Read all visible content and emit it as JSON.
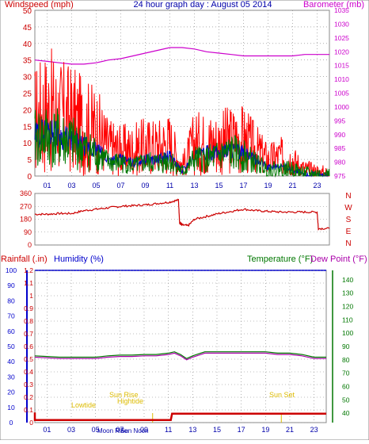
{
  "title": "24 hour graph day : August 05 2014",
  "colors": {
    "wind": "#ff0000",
    "gust_bg": "#ff0000",
    "wind_avg": "#0000cc",
    "wind_green": "#007700",
    "baro": "#cc00cc",
    "temp": "#007700",
    "dew": "#aa00aa",
    "rain": "#cc0000",
    "humidity_axis": "#0000cc",
    "dir": "#cc0000",
    "solar": "#ddbb00",
    "grid": "#808080"
  },
  "chart_data": [
    {
      "type": "line",
      "title": "24 hour graph day : August 05 2014",
      "ylabel_left": "Windspeed (mph)",
      "ylabel_right": "Barometer (mb)",
      "x_ticks": [
        "01",
        "03",
        "05",
        "07",
        "09",
        "11",
        "13",
        "15",
        "17",
        "19",
        "21",
        "23"
      ],
      "x_range": [
        0,
        24
      ],
      "y_left_ticks": [
        0,
        5,
        10,
        15,
        20,
        25,
        30,
        35,
        40,
        45,
        50
      ],
      "y_left_range": [
        0,
        50
      ],
      "y_right_ticks": [
        975,
        980,
        985,
        990,
        995,
        1000,
        1005,
        1010,
        1015,
        1020,
        1025,
        1030,
        1035
      ],
      "y_right_range": [
        975,
        1035
      ],
      "series": [
        {
          "name": "Barometer",
          "axis": "right",
          "x": [
            0,
            1,
            2,
            3,
            4,
            5,
            6,
            7,
            8,
            9,
            10,
            11,
            12,
            13,
            14,
            15,
            16,
            17,
            18,
            19,
            20,
            21,
            22,
            23,
            24
          ],
          "y": [
            1017,
            1016.5,
            1016,
            1015.5,
            1015.5,
            1016,
            1017,
            1017.5,
            1018.5,
            1019.5,
            1020.5,
            1021.5,
            1021.5,
            1021,
            1020,
            1019.5,
            1019,
            1018.5,
            1018.5,
            1018.5,
            1018.5,
            1018.5,
            1019,
            1019,
            1019
          ]
        },
        {
          "name": "Gust",
          "axis": "left",
          "x": [
            0,
            1,
            2,
            3,
            4,
            5,
            6,
            7,
            8,
            9,
            10,
            11,
            12,
            13,
            14,
            15,
            16,
            17,
            18,
            19,
            20,
            21,
            22,
            23,
            24
          ],
          "y": [
            17,
            20,
            18,
            17,
            15,
            14,
            9,
            8,
            8,
            9,
            9,
            10,
            3,
            10,
            10,
            10,
            11,
            11,
            8,
            5,
            6,
            5,
            2,
            1,
            0
          ]
        },
        {
          "name": "Wind",
          "axis": "left",
          "x": [
            0,
            1,
            2,
            3,
            4,
            5,
            6,
            7,
            8,
            9,
            10,
            11,
            12,
            13,
            14,
            15,
            16,
            17,
            18,
            19,
            20,
            21,
            22,
            23,
            24
          ],
          "y": [
            11,
            12,
            11,
            10,
            8,
            7,
            4,
            4,
            3,
            4,
            4,
            5,
            1,
            5,
            5,
            6,
            7,
            6,
            4,
            2,
            2,
            2,
            0.5,
            0.3,
            0
          ]
        },
        {
          "name": "Average",
          "axis": "left",
          "x": [
            0,
            1,
            2,
            3,
            4,
            5,
            6,
            7,
            8,
            9,
            10,
            11,
            12,
            13,
            14,
            15,
            16,
            17,
            18,
            19,
            20,
            21,
            22,
            23,
            24
          ],
          "y": [
            12,
            14,
            12,
            11,
            9,
            8,
            5,
            5,
            4,
            5,
            5,
            6,
            1.5,
            6,
            7,
            7,
            8,
            7,
            5,
            2.5,
            3,
            2,
            0.5,
            0.3,
            0
          ]
        }
      ]
    },
    {
      "type": "line",
      "ylabel_right": [
        "N",
        "W",
        "S",
        "E",
        "N"
      ],
      "x_range": [
        0,
        24
      ],
      "y_ticks": [
        0,
        90,
        180,
        270,
        360
      ],
      "y_range": [
        0,
        360
      ],
      "series": [
        {
          "name": "Wind Direction",
          "x": [
            0,
            1,
            2,
            3,
            4,
            5,
            6,
            7,
            8,
            9,
            10,
            11,
            11.7,
            11.8,
            12,
            12.5,
            13,
            14,
            15,
            16,
            17,
            18,
            19,
            20,
            21,
            22,
            23,
            23.1,
            24
          ],
          "y": [
            215,
            215,
            220,
            220,
            240,
            250,
            260,
            270,
            275,
            280,
            290,
            300,
            315,
            150,
            140,
            135,
            180,
            200,
            220,
            235,
            250,
            240,
            235,
            230,
            230,
            230,
            230,
            115,
            115
          ]
        }
      ]
    },
    {
      "type": "line",
      "ylabel_left": "Rainfall (.in)",
      "ylabel_left2": "Humidity (%)",
      "ylabel_right": "Temperature (°F)",
      "ylabel_right2": "Dew Point (°F)",
      "x_range": [
        0,
        24
      ],
      "rain_ticks": [
        0,
        0.1,
        0.2,
        0.3,
        0.4,
        0.5,
        0.6,
        0.7,
        0.8,
        0.9,
        1,
        1.1,
        1.2
      ],
      "rain_range": [
        0,
        1.2
      ],
      "humidity_ticks": [
        0,
        10,
        20,
        30,
        40,
        50,
        60,
        70,
        80,
        90,
        100
      ],
      "humidity_range": [
        0,
        100
      ],
      "temp_ticks": [
        40,
        50,
        60,
        70,
        80,
        90,
        100,
        110,
        120,
        130,
        140
      ],
      "temp_range": [
        33,
        147
      ],
      "annotations": [
        "Sun Rise",
        "Sun Set",
        "Moon Rise",
        "Lowtide",
        "Hightide",
        "Sun Noon"
      ],
      "series": [
        {
          "name": "Temperature",
          "axis": "temp",
          "x": [
            0,
            1,
            2,
            3,
            4,
            5,
            6,
            7,
            8,
            9,
            10,
            11,
            11.5,
            12,
            12.5,
            13,
            14,
            15,
            16,
            17,
            18,
            19,
            20,
            21,
            22,
            23,
            24
          ],
          "y": [
            83,
            82.5,
            82,
            82,
            82,
            82,
            83,
            83.5,
            83.5,
            84,
            84,
            85,
            86,
            84,
            81,
            83,
            86,
            86,
            86,
            86,
            86,
            86,
            85,
            85,
            84,
            82,
            82
          ]
        },
        {
          "name": "Dew Point",
          "axis": "temp",
          "x": [
            0,
            1,
            2,
            3,
            4,
            5,
            6,
            7,
            8,
            9,
            10,
            11,
            11.5,
            12,
            12.5,
            13,
            14,
            15,
            16,
            17,
            18,
            19,
            20,
            21,
            22,
            23,
            24
          ],
          "y": [
            82,
            81.5,
            81,
            81,
            81,
            81,
            82,
            82.5,
            82.5,
            83,
            83,
            84,
            85,
            83,
            80,
            82,
            85,
            85,
            85,
            85,
            85,
            85,
            84,
            84,
            83,
            81,
            81
          ]
        },
        {
          "name": "Rainfall",
          "axis": "rain",
          "x": [
            0,
            0,
            11.2,
            11.3,
            24
          ],
          "y": [
            0.08,
            0.02,
            0.02,
            0.07,
            0.07
          ]
        }
      ]
    }
  ],
  "labels": {
    "windspeed": "Windspeed (mph)",
    "barometer": "Barometer (mb)",
    "rainfall": "Rainfall (.in)",
    "humidity": "Humidity (%)",
    "temperature": "Temperature (°F)",
    "dewpoint": "Dew Point (°F)",
    "sunrise": "Sun Rise",
    "sunset": "Sun Set",
    "hightide": "Hightide",
    "lowtide": "Lowtide",
    "moonrise": "Moon Rise",
    "sunnoon": "Sun Noon",
    "dir_labels": [
      "N",
      "W",
      "S",
      "E",
      "N"
    ]
  }
}
